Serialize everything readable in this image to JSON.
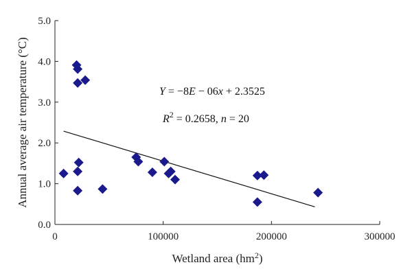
{
  "chart_data": {
    "type": "scatter",
    "title": "",
    "xlabel": "Wetland area (hm",
    "xlabel_sup": "2",
    "xlabel_suffix": ")",
    "ylabel": "Annual average air temperature (°C)",
    "xlim": [
      0,
      300000
    ],
    "ylim": [
      0.0,
      5.0
    ],
    "x_ticks": [
      "0",
      "100000",
      "200000",
      "300000"
    ],
    "y_ticks": [
      "0.0",
      "1.0",
      "2.0",
      "3.0",
      "4.0",
      "5.0"
    ],
    "grid": false,
    "legend": "none",
    "marker": "diamond",
    "marker_color": "#1a1a8c",
    "series": [
      {
        "points": [
          {
            "x": 8000,
            "y": 1.25
          },
          {
            "x": 20000,
            "y": 3.91
          },
          {
            "x": 21000,
            "y": 3.81
          },
          {
            "x": 21000,
            "y": 3.47
          },
          {
            "x": 28000,
            "y": 3.54
          },
          {
            "x": 22000,
            "y": 1.52
          },
          {
            "x": 21000,
            "y": 1.3
          },
          {
            "x": 21000,
            "y": 0.83
          },
          {
            "x": 44000,
            "y": 0.87
          },
          {
            "x": 75000,
            "y": 1.65
          },
          {
            "x": 77000,
            "y": 1.54
          },
          {
            "x": 90000,
            "y": 1.28
          },
          {
            "x": 101000,
            "y": 1.54
          },
          {
            "x": 105000,
            "y": 1.25
          },
          {
            "x": 107000,
            "y": 1.3
          },
          {
            "x": 111000,
            "y": 1.1
          },
          {
            "x": 187000,
            "y": 1.2
          },
          {
            "x": 193000,
            "y": 1.21
          },
          {
            "x": 187000,
            "y": 0.55
          },
          {
            "x": 243000,
            "y": 0.78
          }
        ]
      }
    ],
    "trendline": {
      "x_start": 8000,
      "x_end": 240000,
      "slope": -8e-06,
      "intercept": 2.3525
    },
    "annotations": {
      "equation": {
        "lhs": "Y",
        "eq": " = −8",
        "e": "E",
        "rest": " − 06",
        "x": "x",
        "tail": " + 2.3525"
      },
      "stats": {
        "r": "R",
        "r_sup": "2",
        "r_val": " = 0.2658, ",
        "n": "n",
        "n_val": " = 20"
      }
    }
  }
}
